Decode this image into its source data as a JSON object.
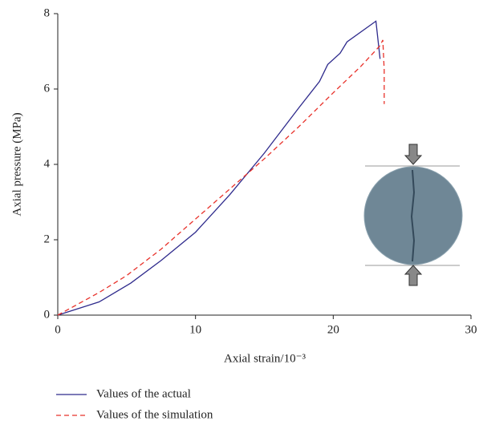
{
  "chart_data": {
    "type": "line",
    "x_label": "Axial strain/10⁻³",
    "y_label": "Axial pressure (MPa)",
    "xlim": [
      0,
      30
    ],
    "xticks": [
      0,
      10,
      20,
      30
    ],
    "ylim": [
      0,
      8
    ],
    "yticks": [
      0,
      2,
      4,
      6,
      8
    ],
    "grid": false,
    "legend": "bottom",
    "series": [
      {
        "name": "Values of the actual",
        "color": "#2e2a8c",
        "dash": false,
        "x": [
          0,
          3,
          5.3,
          7.5,
          10,
          12.5,
          15,
          17.5,
          19,
          19.6,
          20.5,
          21,
          23.1,
          23.4
        ],
        "values": [
          0,
          0.35,
          0.85,
          1.45,
          2.2,
          3.2,
          4.3,
          5.5,
          6.2,
          6.65,
          6.95,
          7.25,
          7.8,
          6.8
        ]
      },
      {
        "name": "Values of the simulation",
        "color": "#e8312a",
        "dash": true,
        "x": [
          0,
          3,
          5,
          7.5,
          10,
          12.5,
          15,
          17.5,
          20,
          22,
          23.4,
          23.6,
          23.7,
          23.7
        ],
        "values": [
          0,
          0.6,
          1.05,
          1.75,
          2.55,
          3.35,
          4.15,
          5.0,
          5.9,
          6.6,
          7.15,
          7.3,
          6.5,
          5.6
        ]
      }
    ]
  }
}
